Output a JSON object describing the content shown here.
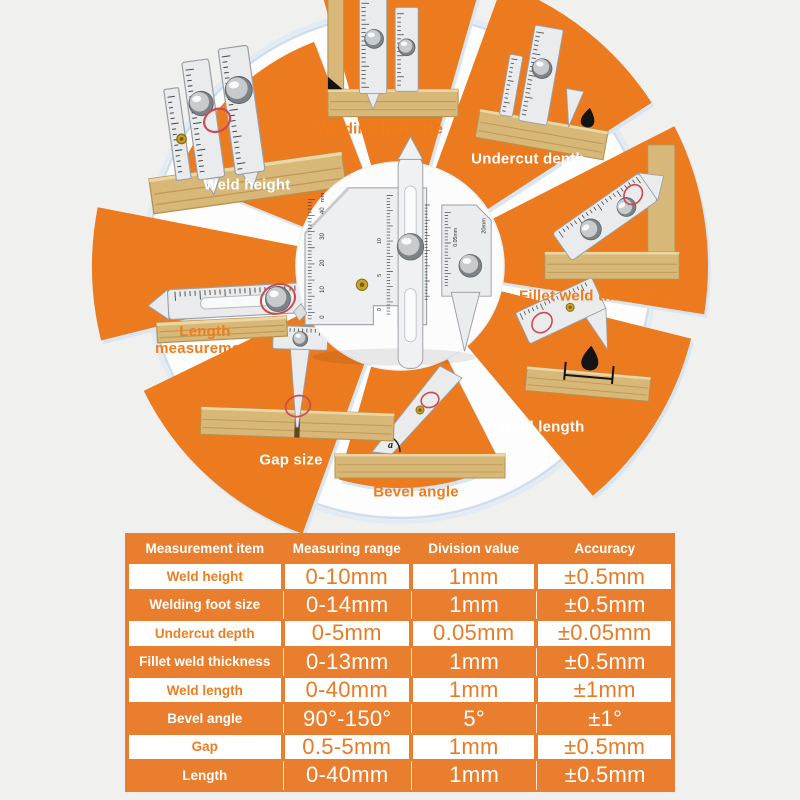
{
  "colors": {
    "wedge_orange": "#ec7a1e",
    "table_orange": "#e87e2e",
    "label_orange": "#f07c1a",
    "ring_blue": "#cfdeed",
    "wood": "#d8b878",
    "annotation_red": "#cc4a52",
    "background": "#f0f0ee"
  },
  "wheel": {
    "segments": [
      {
        "label": "Welding foot size",
        "label_style": "orange-on-white"
      },
      {
        "label": "Undercut depth",
        "label_style": "white-on-orange"
      },
      {
        "label": "Fillet weld thickness",
        "label_style": "orange-on-white"
      },
      {
        "label": "Weld length",
        "label_style": "white-on-orange"
      },
      {
        "label": "Bevel angle",
        "label_style": "orange-on-white"
      },
      {
        "label": "Gap size",
        "label_style": "white-on-orange"
      },
      {
        "label": "Length measurement",
        "label_style": "orange-on-white"
      },
      {
        "label": "Weld height",
        "label_style": "white-on-orange"
      }
    ],
    "center_gauge": {
      "unit_label": "mm",
      "left_scale_numbers": [
        "0",
        "10",
        "20",
        "30",
        "40"
      ],
      "slider_scale_numbers": [
        "0",
        "5",
        "10"
      ],
      "vernier_label": "0.05mm",
      "right_plate_label": "20mm"
    },
    "photos": {
      "bevel_angle_letter": "a"
    }
  },
  "table": {
    "headers": [
      "Measurement item",
      "Measuring range",
      "Division value",
      "Accuracy"
    ],
    "rows": [
      {
        "item": "Weld height",
        "range": "0-10mm",
        "division": "1mm",
        "accuracy": "±0.5mm"
      },
      {
        "item": "Welding foot size",
        "range": "0-14mm",
        "division": "1mm",
        "accuracy": "±0.5mm"
      },
      {
        "item": "Undercut depth",
        "range": "0-5mm",
        "division": "0.05mm",
        "accuracy": "±0.05mm"
      },
      {
        "item": "Fillet weld thickness",
        "range": "0-13mm",
        "division": "1mm",
        "accuracy": "±0.5mm"
      },
      {
        "item": "Weld length",
        "range": "0-40mm",
        "division": "1mm",
        "accuracy": "±1mm"
      },
      {
        "item": "Bevel angle",
        "range": "90°-150°",
        "division": "5°",
        "accuracy": "±1°"
      },
      {
        "item": "Gap",
        "range": "0.5-5mm",
        "division": "1mm",
        "accuracy": "±0.5mm"
      },
      {
        "item": "Length",
        "range": "0-40mm",
        "division": "1mm",
        "accuracy": "±0.5mm"
      }
    ]
  }
}
